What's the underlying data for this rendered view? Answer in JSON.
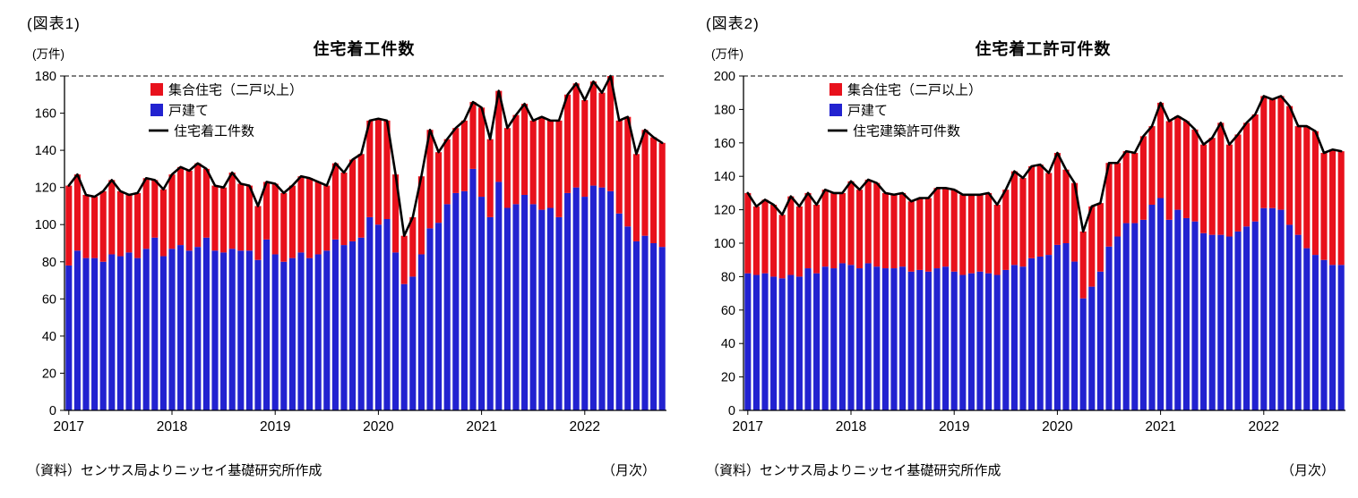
{
  "footer": {
    "source_note": "（資料）センサス局よりニッセイ基礎研究所作成",
    "frequency_note": "（月次）"
  },
  "charts": [
    {
      "figure_label": "(図表1)",
      "unit_label": "(万件)",
      "title": "住宅着工件数",
      "legend": [
        {
          "label": "集合住宅（二戸以上）",
          "color": "#e8111c",
          "type": "box"
        },
        {
          "label": "戸建て",
          "color": "#2222d0",
          "type": "box"
        },
        {
          "label": "住宅着工件数",
          "color": "#000000",
          "type": "line"
        }
      ],
      "chart_data": {
        "type": "bar",
        "subtype": "stacked-bars-with-total-line",
        "x_start": "2017-01",
        "x_end": "2022-10",
        "x_year_labels": [
          "2017",
          "2018",
          "2019",
          "2020",
          "2021",
          "2022"
        ],
        "y_max": 180,
        "y_step": 20,
        "y_axis_unit": "万件",
        "grid": false,
        "legend_position": "top-left-inside",
        "series": [
          {
            "name": "戸建て",
            "color": "#2222d0",
            "role": "stack-bottom",
            "values": [
              78,
              86,
              82,
              82,
              80,
              84,
              83,
              85,
              82,
              87,
              93,
              83,
              87,
              89,
              86,
              88,
              93,
              86,
              85,
              87,
              86,
              86,
              81,
              92,
              84,
              80,
              82,
              85,
              82,
              84,
              86,
              92,
              89,
              91,
              93,
              104,
              100,
              103,
              85,
              68,
              72,
              84,
              98,
              101,
              111,
              117,
              118,
              130,
              115,
              104,
              123,
              109,
              111,
              116,
              111,
              108,
              109,
              104,
              117,
              120,
              115,
              121,
              120,
              118,
              106,
              99,
              91,
              94,
              90,
              88
            ]
          },
          {
            "name": "集合住宅（二戸以上）",
            "color": "#e8111c",
            "role": "stack-top",
            "values": [
              43,
              41,
              34,
              33,
              38,
              40,
              35,
              31,
              35,
              38,
              31,
              36,
              40,
              42,
              43,
              45,
              37,
              35,
              35,
              41,
              36,
              35,
              29,
              31,
              38,
              37,
              39,
              41,
              43,
              39,
              35,
              41,
              39,
              44,
              45,
              52,
              57,
              53,
              42,
              26,
              32,
              42,
              53,
              38,
              35,
              35,
              38,
              36,
              48,
              42,
              49,
              43,
              48,
              49,
              45,
              50,
              47,
              52,
              53,
              56,
              52,
              56,
              51,
              62,
              50,
              59,
              47,
              57,
              57,
              56
            ]
          },
          {
            "name": "住宅着工件数",
            "color": "#000000",
            "role": "total-line",
            "derived": "sum-of-stacks"
          }
        ]
      }
    },
    {
      "figure_label": "(図表2)",
      "unit_label": "(万件)",
      "title": "住宅着工許可件数",
      "legend": [
        {
          "label": "集合住宅（二戸以上）",
          "color": "#e8111c",
          "type": "box"
        },
        {
          "label": "戸建て",
          "color": "#2222d0",
          "type": "box"
        },
        {
          "label": "住宅建築許可件数",
          "color": "#000000",
          "type": "line"
        }
      ],
      "chart_data": {
        "type": "bar",
        "subtype": "stacked-bars-with-total-line",
        "x_start": "2017-01",
        "x_end": "2022-10",
        "x_year_labels": [
          "2017",
          "2018",
          "2019",
          "2020",
          "2021",
          "2022"
        ],
        "y_max": 200,
        "y_step": 20,
        "y_axis_unit": "万件",
        "grid": false,
        "legend_position": "top-left-inside",
        "series": [
          {
            "name": "戸建て",
            "color": "#2222d0",
            "role": "stack-bottom",
            "values": [
              82,
              81,
              82,
              80,
              79,
              81,
              80,
              85,
              82,
              86,
              85,
              88,
              87,
              85,
              88,
              86,
              85,
              85,
              86,
              83,
              84,
              83,
              85,
              86,
              83,
              81,
              82,
              83,
              82,
              81,
              84,
              87,
              86,
              91,
              92,
              93,
              99,
              100,
              89,
              67,
              74,
              83,
              98,
              104,
              112,
              112,
              114,
              123,
              127,
              114,
              120,
              115,
              113,
              106,
              105,
              105,
              104,
              107,
              110,
              113,
              121,
              121,
              120,
              111,
              105,
              97,
              93,
              90,
              87,
              87
            ]
          },
          {
            "name": "集合住宅（二戸以上）",
            "color": "#e8111c",
            "role": "stack-top",
            "values": [
              48,
              41,
              44,
              43,
              38,
              47,
              42,
              45,
              41,
              46,
              45,
              42,
              50,
              47,
              50,
              50,
              45,
              44,
              44,
              42,
              43,
              44,
              48,
              47,
              49,
              48,
              47,
              46,
              48,
              42,
              48,
              56,
              53,
              55,
              55,
              49,
              55,
              44,
              47,
              40,
              48,
              41,
              50,
              44,
              43,
              42,
              50,
              47,
              57,
              59,
              56,
              58,
              55,
              53,
              58,
              67,
              55,
              58,
              62,
              64,
              67,
              65,
              68,
              71,
              65,
              73,
              74,
              64,
              69,
              68
            ]
          },
          {
            "name": "住宅建築許可件数",
            "color": "#000000",
            "role": "total-line",
            "derived": "sum-of-stacks"
          }
        ]
      }
    }
  ]
}
